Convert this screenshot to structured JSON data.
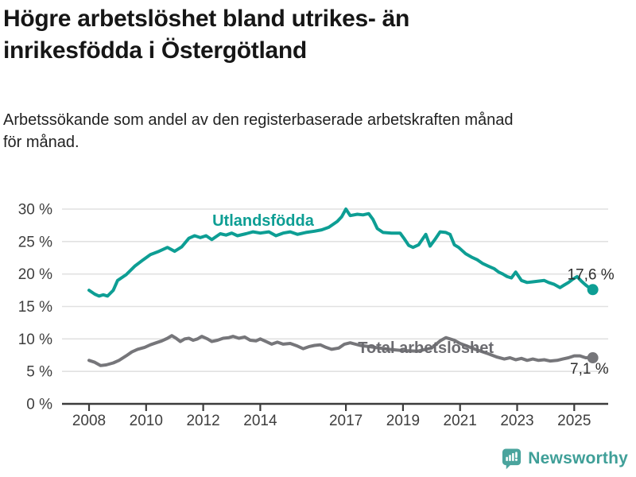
{
  "header": {
    "title": "Högre arbetslöshet bland utrikes- än\ninrikesfödda i Östergötland",
    "subtitle": "Arbetssökande som andel av den registerbaserade arbetskraften månad\nför månad."
  },
  "footer": {
    "brand": "Newsworthy",
    "brand_color": "#3f9f98",
    "icon_color": "#4aa49d"
  },
  "colors": {
    "grid": "#e1e1e1",
    "axis": "#3c3c3c",
    "tick_text": "#3e3e3e",
    "end_label_text": "#2d2d2d"
  },
  "chart_data": {
    "type": "line",
    "title": "Högre arbetslöshet bland utrikes- än inrikesfödda i Östergötland",
    "subtitle": "Arbetssökande som andel av den registerbaserade arbetskraften månad för månad.",
    "unit": "%",
    "xlabel": "",
    "ylabel": "",
    "grid": true,
    "legend_position": "inline-labels",
    "xlim": [
      2007.1,
      2026.2
    ],
    "ylim": [
      0,
      31
    ],
    "x_axis": {
      "ticks": [
        {
          "value": 2008,
          "label": "2008"
        },
        {
          "value": 2010,
          "label": "2010"
        },
        {
          "value": 2012,
          "label": "2012"
        },
        {
          "value": 2014,
          "label": "2014"
        },
        {
          "value": 2017,
          "label": "2017"
        },
        {
          "value": 2019,
          "label": "2019"
        },
        {
          "value": 2021,
          "label": "2021"
        },
        {
          "value": 2023,
          "label": "2023"
        },
        {
          "value": 2025,
          "label": "2025"
        }
      ]
    },
    "y_axis": {
      "ticks": [
        {
          "value": 0,
          "label": "0 %"
        },
        {
          "value": 5,
          "label": "5 %"
        },
        {
          "value": 10,
          "label": "10 %"
        },
        {
          "value": 15,
          "label": "15 %"
        },
        {
          "value": 20,
          "label": "20 %"
        },
        {
          "value": 25,
          "label": "25 %"
        },
        {
          "value": 30,
          "label": "30 %"
        }
      ]
    },
    "series": [
      {
        "name": "Utlandsfödda",
        "slug": "utlandsfodda",
        "color": "#0d9e94",
        "label_color": "#0d9e94",
        "label_pos": {
          "x": 2014.1,
          "y": 28.3
        },
        "end_label": "17,6 %",
        "end_value": 17.6,
        "end_dx": 27,
        "end_dy": -13,
        "points": [
          [
            2008,
            17.5
          ],
          [
            2008.2,
            16.9
          ],
          [
            2008.35,
            16.6
          ],
          [
            2008.5,
            16.8
          ],
          [
            2008.65,
            16.6
          ],
          [
            2008.85,
            17.5
          ],
          [
            2009,
            19
          ],
          [
            2009.3,
            19.9
          ],
          [
            2009.6,
            21.2
          ],
          [
            2009.9,
            22.2
          ],
          [
            2010.15,
            23
          ],
          [
            2010.45,
            23.5
          ],
          [
            2010.75,
            24.1
          ],
          [
            2011,
            23.5
          ],
          [
            2011.25,
            24.2
          ],
          [
            2011.5,
            25.5
          ],
          [
            2011.7,
            25.9
          ],
          [
            2011.9,
            25.6
          ],
          [
            2012.1,
            25.9
          ],
          [
            2012.3,
            25.3
          ],
          [
            2012.6,
            26.2
          ],
          [
            2012.8,
            26
          ],
          [
            2013,
            26.3
          ],
          [
            2013.2,
            25.9
          ],
          [
            2013.5,
            26.2
          ],
          [
            2013.75,
            26.5
          ],
          [
            2014,
            26.3
          ],
          [
            2014.3,
            26.5
          ],
          [
            2014.55,
            25.9
          ],
          [
            2014.8,
            26.3
          ],
          [
            2015.05,
            26.5
          ],
          [
            2015.3,
            26.1
          ],
          [
            2015.6,
            26.4
          ],
          [
            2015.9,
            26.6
          ],
          [
            2016.15,
            26.8
          ],
          [
            2016.4,
            27.2
          ],
          [
            2016.7,
            28.1
          ],
          [
            2016.85,
            28.8
          ],
          [
            2017,
            30
          ],
          [
            2017.15,
            29
          ],
          [
            2017.4,
            29.2
          ],
          [
            2017.6,
            29.1
          ],
          [
            2017.8,
            29.3
          ],
          [
            2017.95,
            28.4
          ],
          [
            2018.1,
            27
          ],
          [
            2018.3,
            26.4
          ],
          [
            2018.6,
            26.3
          ],
          [
            2018.9,
            26.3
          ],
          [
            2019.05,
            25.4
          ],
          [
            2019.2,
            24.4
          ],
          [
            2019.35,
            24.1
          ],
          [
            2019.55,
            24.5
          ],
          [
            2019.8,
            26.1
          ],
          [
            2019.95,
            24.3
          ],
          [
            2020.1,
            25.2
          ],
          [
            2020.3,
            26.5
          ],
          [
            2020.5,
            26.4
          ],
          [
            2020.65,
            26.1
          ],
          [
            2020.8,
            24.5
          ],
          [
            2020.95,
            24.1
          ],
          [
            2021.2,
            23.1
          ],
          [
            2021.4,
            22.6
          ],
          [
            2021.6,
            22.2
          ],
          [
            2021.8,
            21.6
          ],
          [
            2022,
            21.2
          ],
          [
            2022.2,
            20.8
          ],
          [
            2022.35,
            20.3
          ],
          [
            2022.5,
            20
          ],
          [
            2022.65,
            19.6
          ],
          [
            2022.8,
            19.4
          ],
          [
            2022.95,
            20.3
          ],
          [
            2023.15,
            19
          ],
          [
            2023.35,
            18.7
          ],
          [
            2023.55,
            18.8
          ],
          [
            2023.75,
            18.9
          ],
          [
            2023.95,
            19
          ],
          [
            2024.1,
            18.7
          ],
          [
            2024.3,
            18.4
          ],
          [
            2024.5,
            17.9
          ],
          [
            2024.65,
            18.3
          ],
          [
            2024.8,
            18.7
          ],
          [
            2024.95,
            19.2
          ],
          [
            2025.1,
            19.6
          ],
          [
            2025.25,
            18.9
          ],
          [
            2025.4,
            18.3
          ],
          [
            2025.55,
            17.8
          ],
          [
            2025.65,
            17.6
          ]
        ]
      },
      {
        "name": "Total arbetslöshet",
        "slug": "total-arbetsloshet",
        "color": "#76767a",
        "label_color": "#6b6b70",
        "label_pos": {
          "x": 2019.8,
          "y": 8.7
        },
        "end_label": "7,1 %",
        "end_value": 7.1,
        "end_dx": 20,
        "end_dy": 20,
        "points": [
          [
            2008,
            6.7
          ],
          [
            2008.2,
            6.4
          ],
          [
            2008.4,
            5.9
          ],
          [
            2008.6,
            6
          ],
          [
            2008.85,
            6.3
          ],
          [
            2009.05,
            6.7
          ],
          [
            2009.3,
            7.4
          ],
          [
            2009.5,
            8
          ],
          [
            2009.7,
            8.4
          ],
          [
            2009.95,
            8.7
          ],
          [
            2010.15,
            9.1
          ],
          [
            2010.35,
            9.4
          ],
          [
            2010.55,
            9.7
          ],
          [
            2010.75,
            10.1
          ],
          [
            2010.9,
            10.5
          ],
          [
            2011.05,
            10.1
          ],
          [
            2011.2,
            9.6
          ],
          [
            2011.35,
            10
          ],
          [
            2011.5,
            10.1
          ],
          [
            2011.65,
            9.8
          ],
          [
            2011.8,
            10
          ],
          [
            2011.95,
            10.4
          ],
          [
            2012.15,
            10
          ],
          [
            2012.3,
            9.6
          ],
          [
            2012.5,
            9.8
          ],
          [
            2012.7,
            10.1
          ],
          [
            2012.9,
            10.2
          ],
          [
            2013.05,
            10.4
          ],
          [
            2013.25,
            10.1
          ],
          [
            2013.45,
            10.3
          ],
          [
            2013.65,
            9.8
          ],
          [
            2013.85,
            9.7
          ],
          [
            2014,
            10
          ],
          [
            2014.2,
            9.6
          ],
          [
            2014.4,
            9.2
          ],
          [
            2014.6,
            9.5
          ],
          [
            2014.8,
            9.2
          ],
          [
            2015.05,
            9.3
          ],
          [
            2015.3,
            8.9
          ],
          [
            2015.5,
            8.5
          ],
          [
            2015.7,
            8.8
          ],
          [
            2015.9,
            9
          ],
          [
            2016.1,
            9.1
          ],
          [
            2016.3,
            8.7
          ],
          [
            2016.5,
            8.4
          ],
          [
            2016.75,
            8.6
          ],
          [
            2016.95,
            9.2
          ],
          [
            2017.15,
            9.4
          ],
          [
            2017.5,
            9
          ],
          [
            2018,
            8.7
          ],
          [
            2018.5,
            8.4
          ],
          [
            2019,
            8.2
          ],
          [
            2019.5,
            8.1
          ],
          [
            2020,
            8.6
          ],
          [
            2020.3,
            9.7
          ],
          [
            2020.5,
            10.2
          ],
          [
            2020.8,
            9.8
          ],
          [
            2021,
            9.3
          ],
          [
            2021.3,
            8.8
          ],
          [
            2021.6,
            8.3
          ],
          [
            2022,
            7.7
          ],
          [
            2022.3,
            7.2
          ],
          [
            2022.55,
            6.9
          ],
          [
            2022.75,
            7.1
          ],
          [
            2022.95,
            6.8
          ],
          [
            2023.15,
            7
          ],
          [
            2023.35,
            6.7
          ],
          [
            2023.55,
            6.9
          ],
          [
            2023.75,
            6.7
          ],
          [
            2023.95,
            6.8
          ],
          [
            2024.15,
            6.6
          ],
          [
            2024.4,
            6.7
          ],
          [
            2024.6,
            6.9
          ],
          [
            2024.8,
            7.1
          ],
          [
            2025,
            7.4
          ],
          [
            2025.2,
            7.4
          ],
          [
            2025.4,
            7.1
          ],
          [
            2025.65,
            7.1
          ]
        ]
      }
    ]
  }
}
